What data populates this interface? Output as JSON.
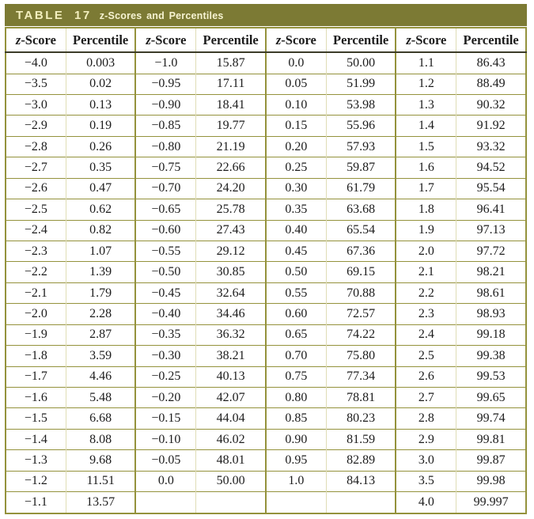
{
  "title": {
    "label": "TABLE 17",
    "subtitle": "z-Scores and Percentiles"
  },
  "header": {
    "z_italic": "z",
    "z_rest": "-Score",
    "percentile": "Percentile"
  },
  "colors": {
    "band_olive": "#7c7a34",
    "grid_olive": "#94923c",
    "header_rule_dark": "#3c3c28",
    "title_text_cream": "#f3efbe"
  },
  "table": {
    "column_headers": [
      "z-Score",
      "Percentile",
      "z-Score",
      "Percentile",
      "z-Score",
      "Percentile",
      "z-Score",
      "Percentile"
    ],
    "rows": [
      [
        "−4.0",
        "0.003",
        "−1.0",
        "15.87",
        "0.0",
        "50.00",
        "1.1",
        "86.43"
      ],
      [
        "−3.5",
        "0.02",
        "−0.95",
        "17.11",
        "0.05",
        "51.99",
        "1.2",
        "88.49"
      ],
      [
        "−3.0",
        "0.13",
        "−0.90",
        "18.41",
        "0.10",
        "53.98",
        "1.3",
        "90.32"
      ],
      [
        "−2.9",
        "0.19",
        "−0.85",
        "19.77",
        "0.15",
        "55.96",
        "1.4",
        "91.92"
      ],
      [
        "−2.8",
        "0.26",
        "−0.80",
        "21.19",
        "0.20",
        "57.93",
        "1.5",
        "93.32"
      ],
      [
        "−2.7",
        "0.35",
        "−0.75",
        "22.66",
        "0.25",
        "59.87",
        "1.6",
        "94.52"
      ],
      [
        "−2.6",
        "0.47",
        "−0.70",
        "24.20",
        "0.30",
        "61.79",
        "1.7",
        "95.54"
      ],
      [
        "−2.5",
        "0.62",
        "−0.65",
        "25.78",
        "0.35",
        "63.68",
        "1.8",
        "96.41"
      ],
      [
        "−2.4",
        "0.82",
        "−0.60",
        "27.43",
        "0.40",
        "65.54",
        "1.9",
        "97.13"
      ],
      [
        "−2.3",
        "1.07",
        "−0.55",
        "29.12",
        "0.45",
        "67.36",
        "2.0",
        "97.72"
      ],
      [
        "−2.2",
        "1.39",
        "−0.50",
        "30.85",
        "0.50",
        "69.15",
        "2.1",
        "98.21"
      ],
      [
        "−2.1",
        "1.79",
        "−0.45",
        "32.64",
        "0.55",
        "70.88",
        "2.2",
        "98.61"
      ],
      [
        "−2.0",
        "2.28",
        "−0.40",
        "34.46",
        "0.60",
        "72.57",
        "2.3",
        "98.93"
      ],
      [
        "−1.9",
        "2.87",
        "−0.35",
        "36.32",
        "0.65",
        "74.22",
        "2.4",
        "99.18"
      ],
      [
        "−1.8",
        "3.59",
        "−0.30",
        "38.21",
        "0.70",
        "75.80",
        "2.5",
        "99.38"
      ],
      [
        "−1.7",
        "4.46",
        "−0.25",
        "40.13",
        "0.75",
        "77.34",
        "2.6",
        "99.53"
      ],
      [
        "−1.6",
        "5.48",
        "−0.20",
        "42.07",
        "0.80",
        "78.81",
        "2.7",
        "99.65"
      ],
      [
        "−1.5",
        "6.68",
        "−0.15",
        "44.04",
        "0.85",
        "80.23",
        "2.8",
        "99.74"
      ],
      [
        "−1.4",
        "8.08",
        "−0.10",
        "46.02",
        "0.90",
        "81.59",
        "2.9",
        "99.81"
      ],
      [
        "−1.3",
        "9.68",
        "−0.05",
        "48.01",
        "0.95",
        "82.89",
        "3.0",
        "99.87"
      ],
      [
        "−1.2",
        "11.51",
        "0.0",
        "50.00",
        "1.0",
        "84.13",
        "3.5",
        "99.98"
      ],
      [
        "−1.1",
        "13.57",
        "",
        "",
        "",
        "",
        "4.0",
        "99.997"
      ]
    ]
  }
}
